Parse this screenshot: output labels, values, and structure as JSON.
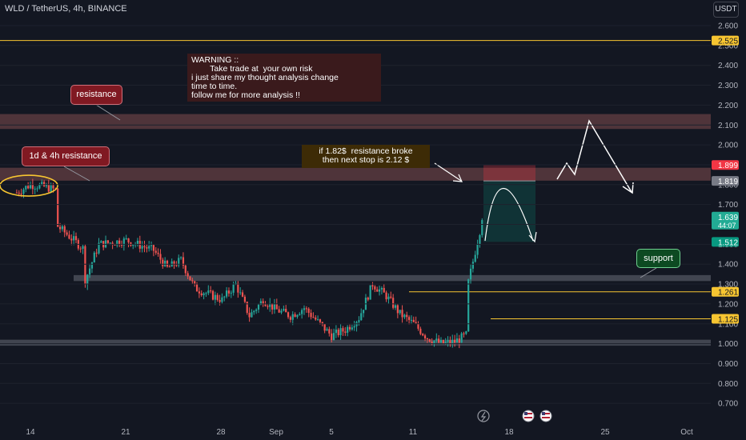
{
  "header": {
    "symbol": "WLD / TetherUS, 4h, BINANCE",
    "currency_button": "USDT"
  },
  "annotations": {
    "warning": "WARNING ::\n        Take trade at  your own risk\ni just share my thought analysis change\ntime to time.\nfollow me for more analysis !!",
    "resistance": "resistance",
    "resistance_1d4h": "1d & 4h resistance",
    "breakout_note": "if 1.82$  resistance broke\nthen next stop is 2.12 $",
    "support": "support"
  },
  "price_axis": {
    "ticks": [
      "2.600",
      "2.500",
      "2.400",
      "2.300",
      "2.200",
      "2.100",
      "2.000",
      "1.900",
      "1.800",
      "1.700",
      "1.600",
      "1.500",
      "1.400",
      "1.300",
      "1.200",
      "1.100",
      "1.000",
      "0.900",
      "0.800",
      "0.700"
    ],
    "labels": [
      {
        "text": "2.525",
        "value": 2.525,
        "color": "#f7c531",
        "fg": "#131722"
      },
      {
        "text": "1.899",
        "value": 1.899,
        "color": "#f23645",
        "fg": "#ffffff"
      },
      {
        "text": "1.819",
        "value": 1.819,
        "color": "#787b86",
        "fg": "#ffffff"
      },
      {
        "text": "1.639",
        "value": 1.639,
        "color": "#22ab94",
        "fg": "#ffffff",
        "sub": "44:07"
      },
      {
        "text": "1.512",
        "value": 1.512,
        "color": "#089981",
        "fg": "#ffffff"
      },
      {
        "text": "1.261",
        "value": 1.261,
        "color": "#f7c531",
        "fg": "#131722"
      },
      {
        "text": "1.125",
        "value": 1.125,
        "color": "#f7c531",
        "fg": "#131722"
      }
    ]
  },
  "time_axis": {
    "ticks": [
      "14",
      "21",
      "28",
      "Sep",
      "5",
      "11",
      "18",
      "25",
      "Oct"
    ]
  },
  "chart_data": {
    "type": "candlestick",
    "title": "WLD / TetherUS, 4h, BINANCE",
    "ylim": [
      0.65,
      2.65
    ],
    "x_start": "2023-08-13",
    "x_end": "2023-10-01",
    "series": [
      {
        "name": "WLD/USDT",
        "waypoints": [
          [
            "2023-08-13",
            1.76
          ],
          [
            "2023-08-14",
            1.8
          ],
          [
            "2023-08-15",
            1.79
          ],
          [
            "2023-08-16",
            1.77
          ],
          [
            "2023-08-16",
            1.59
          ],
          [
            "2023-08-17",
            1.53
          ],
          [
            "2023-08-18",
            1.47
          ],
          [
            "2023-08-18",
            1.32
          ],
          [
            "2023-08-19",
            1.5
          ],
          [
            "2023-08-21",
            1.52
          ],
          [
            "2023-08-23",
            1.47
          ],
          [
            "2023-08-24",
            1.38
          ],
          [
            "2023-08-25",
            1.42
          ],
          [
            "2023-08-26",
            1.28
          ],
          [
            "2023-08-28",
            1.22
          ],
          [
            "2023-08-29",
            1.3
          ],
          [
            "2023-08-30",
            1.14
          ],
          [
            "2023-08-31",
            1.22
          ],
          [
            "2023-09-01",
            1.17
          ],
          [
            "2023-09-02",
            1.14
          ],
          [
            "2023-09-03",
            1.18
          ],
          [
            "2023-09-05",
            1.04
          ],
          [
            "2023-09-06",
            1.07
          ],
          [
            "2023-09-07",
            1.13
          ],
          [
            "2023-09-08",
            1.3
          ],
          [
            "2023-09-09",
            1.24
          ],
          [
            "2023-09-10",
            1.15
          ],
          [
            "2023-09-11",
            1.1
          ],
          [
            "2023-09-12",
            1.03
          ],
          [
            "2023-09-13",
            1.0
          ],
          [
            "2023-09-14",
            1.01
          ],
          [
            "2023-09-15",
            1.05
          ],
          [
            "2023-09-15",
            1.31
          ],
          [
            "2023-09-16",
            1.62
          ],
          [
            "2023-09-16",
            1.639
          ]
        ]
      }
    ],
    "zones": [
      {
        "label": "resistance",
        "from": 2.08,
        "to": 2.155
      },
      {
        "label": "1d & 4h resistance",
        "from": 1.82,
        "to": 1.885
      },
      {
        "label": "support",
        "from": 1.315,
        "to": 1.345
      },
      {
        "label": "support",
        "from": 0.99,
        "to": 1.02
      }
    ],
    "levels": [
      2.525,
      1.261,
      1.125
    ],
    "position": {
      "entry": 1.819,
      "stop": 1.899,
      "target": 1.512
    }
  },
  "colors": {
    "up": "#26a69a",
    "down": "#ef5350",
    "zone": "#4a4d58",
    "resistance_zone": "#5a3a3e",
    "level": "#f7c531",
    "text": "#d1d4dc",
    "background": "#131722",
    "grid": "#1e222d"
  }
}
